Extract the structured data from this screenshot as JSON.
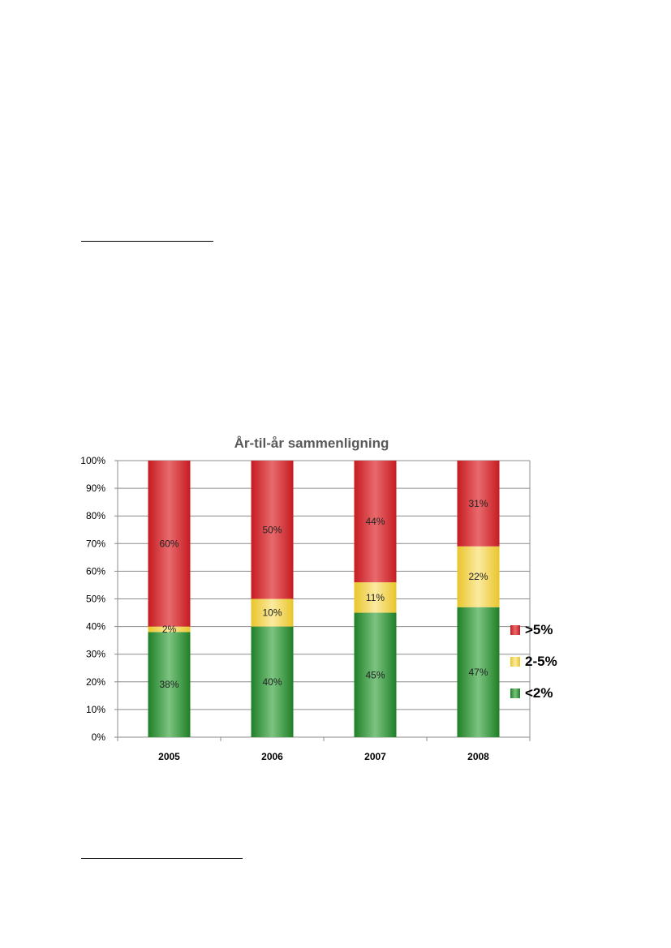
{
  "chart_data": {
    "type": "bar",
    "stacked": true,
    "title": "År-til-år sammenligning",
    "categories": [
      "2005",
      "2006",
      "2007",
      "2008"
    ],
    "series": [
      {
        "name": "<2%",
        "color": "#2e9a35",
        "values": [
          38,
          40,
          45,
          47
        ],
        "labels": [
          "38%",
          "40%",
          "45%",
          "47%"
        ]
      },
      {
        "name": "2-5%",
        "color": "#f2d43d",
        "values": [
          2,
          10,
          11,
          22
        ],
        "labels": [
          "2%",
          "10%",
          "11%",
          "22%"
        ]
      },
      {
        "name": ">5%",
        "color": "#d9262c",
        "values": [
          60,
          50,
          44,
          31
        ],
        "labels": [
          "60%",
          "50%",
          "44%",
          "31%"
        ]
      }
    ],
    "yticks": [
      "0%",
      "10%",
      "20%",
      "30%",
      "40%",
      "50%",
      "60%",
      "70%",
      "80%",
      "90%",
      "100%"
    ],
    "ylim": [
      0,
      100
    ],
    "grid": true,
    "legend_position": "right",
    "legend_order": [
      ">5%",
      "2-5%",
      "<2%"
    ]
  }
}
